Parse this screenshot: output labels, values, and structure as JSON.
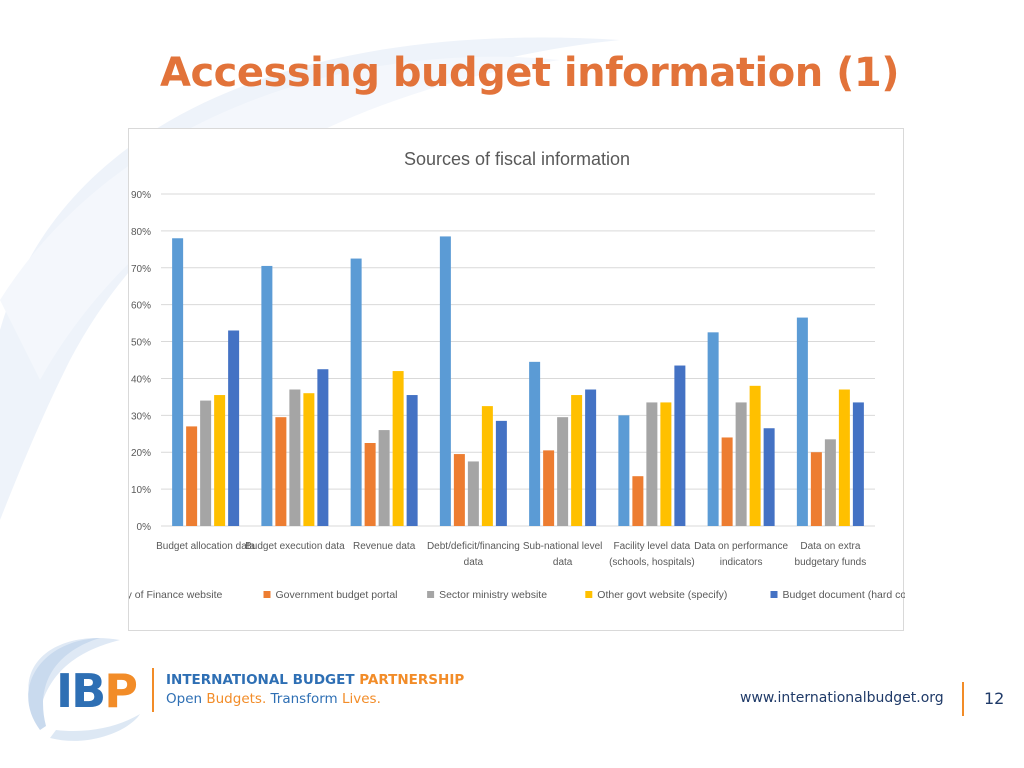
{
  "slide": {
    "title": "Accessing budget information (1)",
    "footer_url": "www.internationalbudget.org",
    "page_number": "12"
  },
  "logo": {
    "mark_ib": "IB",
    "mark_p": "P",
    "name_part1": "INTERNATIONAL BUDGET ",
    "name_part2": "PARTNERSHIP",
    "tag_part1": "Open ",
    "tag_part2": "Budgets.",
    "tag_part3": " Transform ",
    "tag_part4": "Lives."
  },
  "colors": {
    "title": "#e2733a",
    "ministry_of_finance": "#5b9bd5",
    "government_portal": "#ed7d31",
    "sector_ministry": "#a5a5a5",
    "other_govt": "#ffc000",
    "budget_document": "#4472c4"
  },
  "chart_data": {
    "type": "bar",
    "title": "Sources of fiscal information",
    "categories": [
      [
        "Budget allocation data"
      ],
      [
        "Budget execution data"
      ],
      [
        "Revenue data"
      ],
      [
        "Debt/deficit/financing",
        "data"
      ],
      [
        "Sub-national level",
        "data"
      ],
      [
        "Facility level data",
        "(schools, hospitals)"
      ],
      [
        "Data on performance",
        "indicators"
      ],
      [
        "Data on extra",
        "budgetary funds"
      ]
    ],
    "series": [
      {
        "name": "Ministry of Finance website",
        "color": "#5b9bd5",
        "values": [
          78,
          70.5,
          72.5,
          78.5,
          44.5,
          30,
          52.5,
          56.5
        ]
      },
      {
        "name": "Government budget portal",
        "color": "#ed7d31",
        "values": [
          27,
          29.5,
          22.5,
          19.5,
          20.5,
          13.5,
          24,
          20
        ]
      },
      {
        "name": "Sector ministry website",
        "color": "#a5a5a5",
        "values": [
          34,
          37,
          26,
          17.5,
          29.5,
          33.5,
          33.5,
          23.5
        ]
      },
      {
        "name": "Other govt website (specify)",
        "color": "#ffc000",
        "values": [
          35.5,
          36,
          42,
          32.5,
          35.5,
          33.5,
          38,
          37
        ]
      },
      {
        "name": "Budget document (hard copy)",
        "color": "#4472c4",
        "values": [
          53,
          42.5,
          35.5,
          28.5,
          37,
          43.5,
          26.5,
          33.5
        ]
      }
    ],
    "y_ticks": [
      "0%",
      "10%",
      "20%",
      "30%",
      "40%",
      "50%",
      "60%",
      "70%",
      "80%",
      "90%"
    ],
    "ylim": [
      0,
      90
    ],
    "grid": true,
    "legend": "bottom"
  }
}
